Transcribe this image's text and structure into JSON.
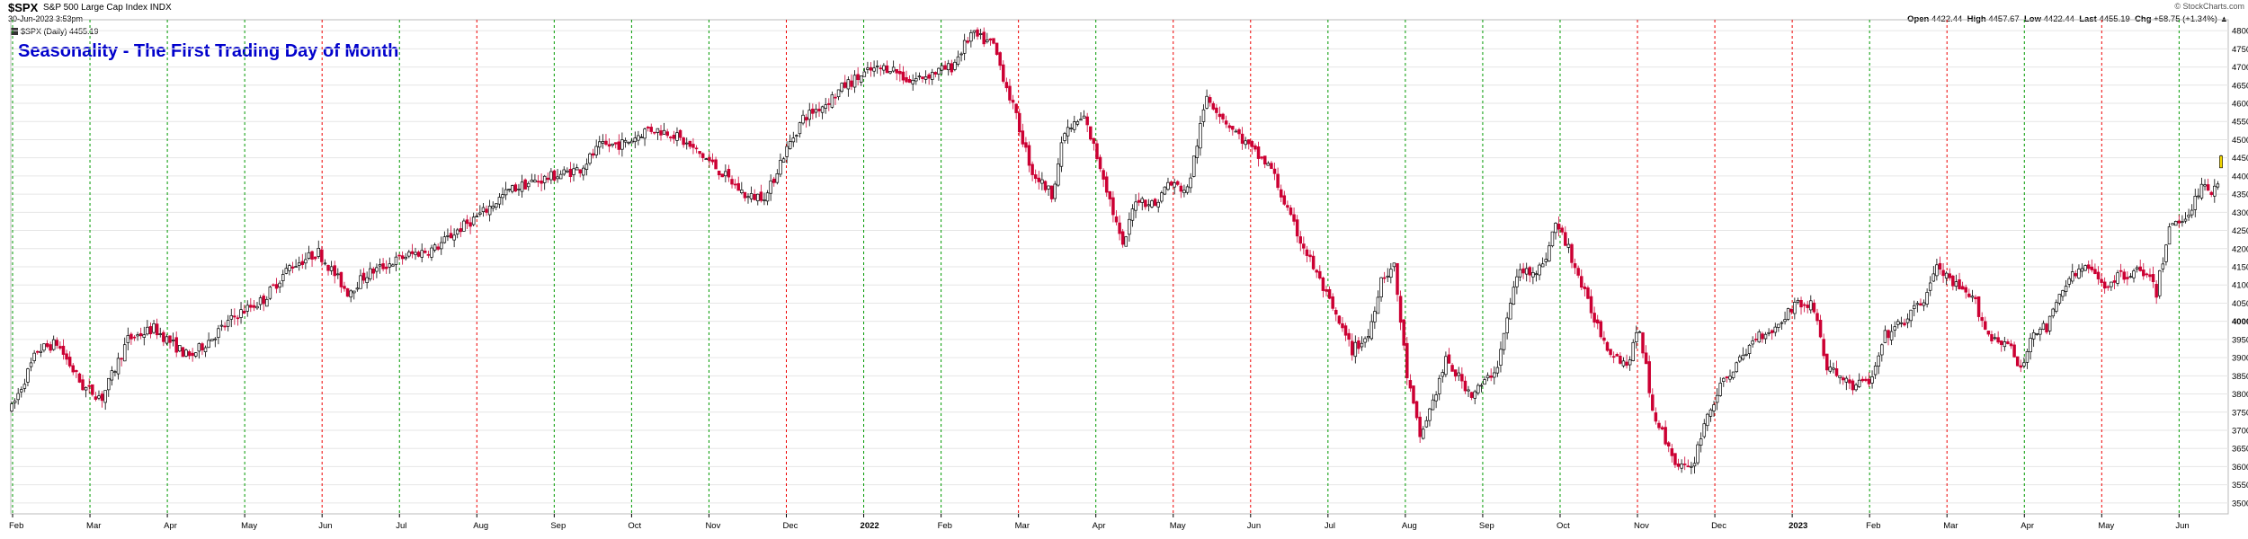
{
  "header": {
    "symbol": "$SPX",
    "name": "S&P 500 Large Cap Index",
    "exchange": "INDX",
    "date": "30-Jun-2023 3:53pm",
    "copyright": "© StockCharts.com",
    "legend": "$SPX (Daily) 4455.19",
    "open_label": "Open",
    "open": "4422.44",
    "high_label": "High",
    "high": "4457.67",
    "low_label": "Low",
    "low": "4422.44",
    "last_label": "Last",
    "last": "4455.19",
    "chg_label": "Chg",
    "chg": "+58.75 (+1.34%)",
    "chg_arrow": "▲"
  },
  "colors": {
    "up": "#000000",
    "down": "#cc0033",
    "last_candle": "#f2d600",
    "green_marker": "#009900",
    "red_marker": "#ee0000",
    "title": "#0000cc",
    "grid": "#e6e6e6"
  },
  "chart_data": {
    "type": "candlestick",
    "title": "Seasonality - The First Trading Day of Month",
    "ylim": [
      3470,
      4830
    ],
    "y_ticks": [
      3500,
      3550,
      3600,
      3650,
      3700,
      3750,
      3800,
      3850,
      3900,
      3950,
      4000,
      4050,
      4100,
      4150,
      4200,
      4250,
      4300,
      4350,
      4400,
      4450,
      4500,
      4550,
      4600,
      4650,
      4700,
      4750,
      4800
    ],
    "y_bold": [
      4000
    ],
    "x_labels": [
      {
        "label": "Feb",
        "bold": false
      },
      {
        "label": "Mar",
        "bold": false
      },
      {
        "label": "Apr",
        "bold": false
      },
      {
        "label": "May",
        "bold": false
      },
      {
        "label": "Jun",
        "bold": false
      },
      {
        "label": "Jul",
        "bold": false
      },
      {
        "label": "Aug",
        "bold": false
      },
      {
        "label": "Sep",
        "bold": false
      },
      {
        "label": "Oct",
        "bold": false
      },
      {
        "label": "Nov",
        "bold": false
      },
      {
        "label": "Dec",
        "bold": false
      },
      {
        "label": "2022",
        "bold": true
      },
      {
        "label": "Feb",
        "bold": false
      },
      {
        "label": "Mar",
        "bold": false
      },
      {
        "label": "Apr",
        "bold": false
      },
      {
        "label": "May",
        "bold": false
      },
      {
        "label": "Jun",
        "bold": false
      },
      {
        "label": "Jul",
        "bold": false
      },
      {
        "label": "Aug",
        "bold": false
      },
      {
        "label": "Sep",
        "bold": false
      },
      {
        "label": "Oct",
        "bold": false
      },
      {
        "label": "Nov",
        "bold": false
      },
      {
        "label": "Dec",
        "bold": false
      },
      {
        "label": "2023",
        "bold": true
      },
      {
        "label": "Feb",
        "bold": false
      },
      {
        "label": "Mar",
        "bold": false
      },
      {
        "label": "Apr",
        "bold": false
      },
      {
        "label": "May",
        "bold": false
      },
      {
        "label": "Jun",
        "bold": false
      }
    ],
    "month_markers": [
      "green",
      "green",
      "green",
      "green",
      "red",
      "green",
      "red",
      "green",
      "green",
      "green",
      "red",
      "green",
      "green",
      "red",
      "green",
      "red",
      "red",
      "green",
      "green",
      "green",
      "green",
      "red",
      "red",
      "red",
      "green",
      "red",
      "green",
      "red",
      "green"
    ],
    "monthly_path": [
      [
        0,
        3760
      ],
      [
        8,
        3920
      ],
      [
        14,
        3940
      ],
      [
        22,
        3820
      ],
      [
        28,
        3790
      ],
      [
        36,
        3950
      ],
      [
        44,
        3980
      ],
      [
        55,
        3900
      ],
      [
        70,
        4020
      ],
      [
        78,
        4060
      ],
      [
        86,
        4150
      ],
      [
        95,
        4190
      ],
      [
        104,
        4080
      ],
      [
        110,
        4130
      ],
      [
        122,
        4180
      ],
      [
        131,
        4200
      ],
      [
        138,
        4250
      ],
      [
        146,
        4300
      ],
      [
        154,
        4360
      ],
      [
        160,
        4380
      ],
      [
        168,
        4400
      ],
      [
        176,
        4420
      ],
      [
        182,
        4480
      ],
      [
        190,
        4490
      ],
      [
        197,
        4530
      ],
      [
        204,
        4520
      ],
      [
        210,
        4480
      ],
      [
        216,
        4440
      ],
      [
        222,
        4390
      ],
      [
        228,
        4340
      ],
      [
        234,
        4350
      ],
      [
        238,
        4440
      ],
      [
        245,
        4560
      ],
      [
        252,
        4600
      ],
      [
        258,
        4650
      ],
      [
        266,
        4690
      ],
      [
        272,
        4700
      ],
      [
        278,
        4660
      ],
      [
        284,
        4680
      ],
      [
        291,
        4700
      ],
      [
        297,
        4790
      ],
      [
        304,
        4760
      ],
      [
        310,
        4590
      ],
      [
        316,
        4410
      ],
      [
        322,
        4350
      ],
      [
        326,
        4520
      ],
      [
        332,
        4560
      ],
      [
        338,
        4400
      ],
      [
        344,
        4200
      ],
      [
        348,
        4340
      ],
      [
        354,
        4320
      ],
      [
        358,
        4380
      ],
      [
        364,
        4360
      ],
      [
        370,
        4620
      ],
      [
        376,
        4550
      ],
      [
        384,
        4470
      ],
      [
        390,
        4420
      ],
      [
        396,
        4280
      ],
      [
        404,
        4130
      ],
      [
        410,
        4010
      ],
      [
        415,
        3920
      ],
      [
        420,
        3960
      ],
      [
        424,
        4120
      ],
      [
        428,
        4150
      ],
      [
        432,
        3850
      ],
      [
        436,
        3680
      ],
      [
        440,
        3780
      ],
      [
        444,
        3890
      ],
      [
        452,
        3800
      ],
      [
        456,
        3830
      ],
      [
        460,
        3880
      ],
      [
        466,
        4130
      ],
      [
        474,
        4150
      ],
      [
        478,
        4270
      ],
      [
        482,
        4200
      ],
      [
        488,
        4050
      ],
      [
        494,
        3930
      ],
      [
        500,
        3880
      ],
      [
        504,
        3980
      ],
      [
        508,
        3760
      ],
      [
        512,
        3670
      ],
      [
        516,
        3600
      ],
      [
        520,
        3590
      ],
      [
        524,
        3720
      ],
      [
        528,
        3800
      ],
      [
        532,
        3860
      ],
      [
        536,
        3900
      ],
      [
        540,
        3960
      ],
      [
        546,
        3980
      ],
      [
        552,
        4050
      ],
      [
        558,
        4040
      ],
      [
        562,
        3870
      ],
      [
        566,
        3850
      ],
      [
        570,
        3820
      ],
      [
        576,
        3840
      ],
      [
        580,
        3960
      ],
      [
        586,
        4000
      ],
      [
        592,
        4060
      ],
      [
        596,
        4150
      ],
      [
        600,
        4110
      ],
      [
        604,
        4080
      ],
      [
        608,
        4050
      ],
      [
        612,
        3960
      ],
      [
        618,
        3940
      ],
      [
        622,
        3860
      ],
      [
        626,
        3980
      ],
      [
        630,
        3980
      ],
      [
        636,
        4110
      ],
      [
        642,
        4150
      ],
      [
        648,
        4100
      ],
      [
        654,
        4130
      ],
      [
        660,
        4140
      ],
      [
        664,
        4080
      ],
      [
        668,
        4260
      ],
      [
        672,
        4280
      ],
      [
        676,
        4330
      ],
      [
        678,
        4390
      ],
      [
        680,
        4350
      ],
      [
        684,
        4400
      ]
    ],
    "last_candle": {
      "open": 4422.44,
      "high": 4457.67,
      "low": 4422.44,
      "close": 4455.19
    }
  }
}
